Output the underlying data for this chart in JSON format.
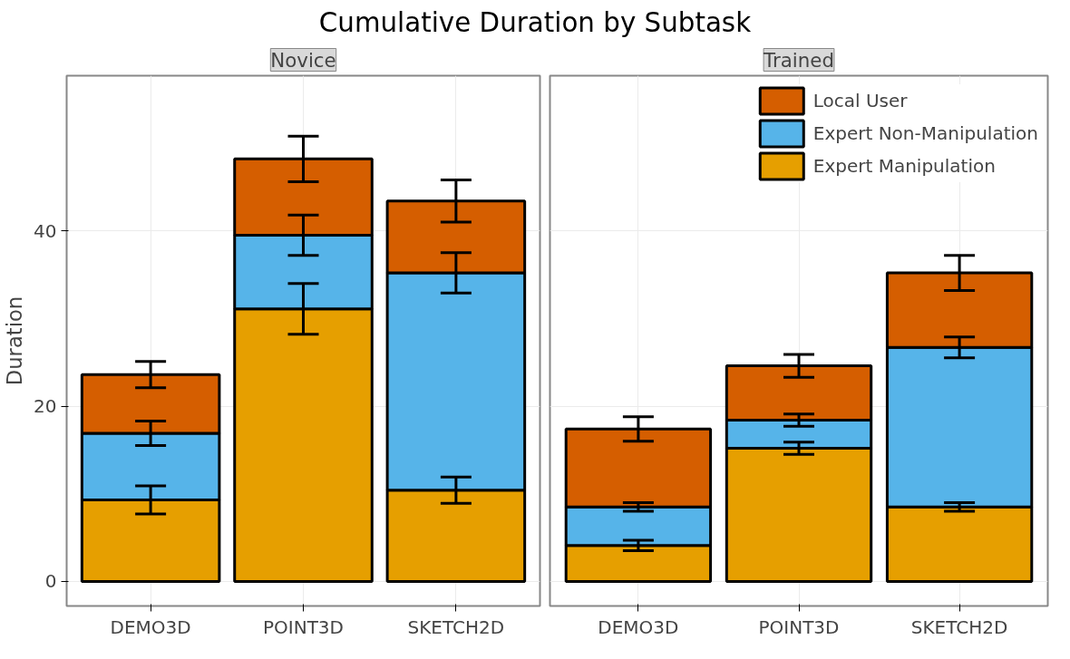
{
  "chart_data": [
    {
      "type": "bar",
      "title": "Cumulative Duration by Subtask",
      "subtitle": "Novice",
      "ylabel": "Duration",
      "categories": [
        "DEMO3D",
        "POINT3D",
        "SKETCH2D"
      ],
      "stacked": true,
      "ylim": [
        -2.8,
        57.7
      ],
      "yticks": [
        0,
        20,
        40
      ],
      "grid": true,
      "series": [
        {
          "color": "#e69f00",
          "values": [
            9.3,
            31.1,
            10.4
          ],
          "errors": [
            1.6,
            2.9,
            1.5
          ]
        },
        {
          "color": "#56b4e9",
          "values": [
            7.6,
            8.4,
            24.8
          ],
          "errors": [
            1.4,
            2.3,
            2.3
          ]
        },
        {
          "color": "#d55e00",
          "values": [
            6.7,
            8.7,
            8.2
          ],
          "errors": [
            1.5,
            2.6,
            2.4
          ]
        }
      ]
    },
    {
      "type": "bar",
      "subtitle": "Trained",
      "categories": [
        "DEMO3D",
        "POINT3D",
        "SKETCH2D"
      ],
      "stacked": true,
      "ylim": [
        -2.8,
        57.7
      ],
      "yticks": [
        0,
        20,
        40
      ],
      "grid": true,
      "legend": "top right",
      "tick_labels": "x",
      "series": [
        {
          "name": "Expert Manipulation",
          "color": "#e69f00",
          "values": [
            4.1,
            15.2,
            8.5
          ],
          "errors": [
            0.6,
            0.7,
            0.5
          ]
        },
        {
          "name": "Expert Non-Manipulation",
          "color": "#56b4e9",
          "values": [
            4.4,
            3.2,
            18.2
          ],
          "errors": [
            0.5,
            0.7,
            1.2
          ]
        },
        {
          "name": "Local User",
          "color": "#d55e00",
          "values": [
            8.9,
            6.2,
            8.5
          ],
          "errors": [
            1.4,
            1.3,
            2.0
          ]
        }
      ]
    }
  ]
}
